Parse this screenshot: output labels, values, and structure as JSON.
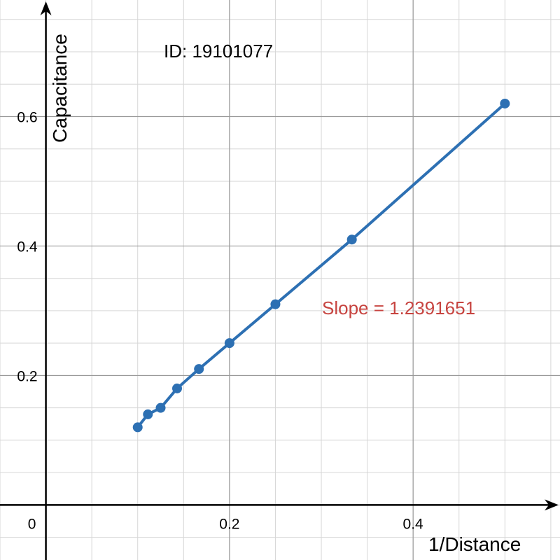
{
  "chart_data": {
    "type": "line",
    "title": "ID: 19101077",
    "xlabel": "1/Distance",
    "ylabel": "Capacitance",
    "annotation": "Slope = 1.2391651",
    "annotation_color": "#c74440",
    "series_color": "#2d70b3",
    "grid": true,
    "xlim": [
      -0.05,
      0.56
    ],
    "ylim": [
      -0.085,
      0.78
    ],
    "x_ticks": [
      0.2,
      0.4
    ],
    "x_tick_labels": [
      "0.2",
      "0.4"
    ],
    "y_ticks": [
      0.2,
      0.4,
      0.6
    ],
    "y_tick_labels": [
      "0.2",
      "0.4",
      "0.6"
    ],
    "origin_label": "0",
    "series": [
      {
        "x": [
          0.1,
          0.1111,
          0.125,
          0.1429,
          0.1667,
          0.2,
          0.25,
          0.3333,
          0.5
        ],
        "y": [
          0.12,
          0.14,
          0.15,
          0.18,
          0.21,
          0.25,
          0.31,
          0.41,
          0.62
        ]
      }
    ]
  }
}
